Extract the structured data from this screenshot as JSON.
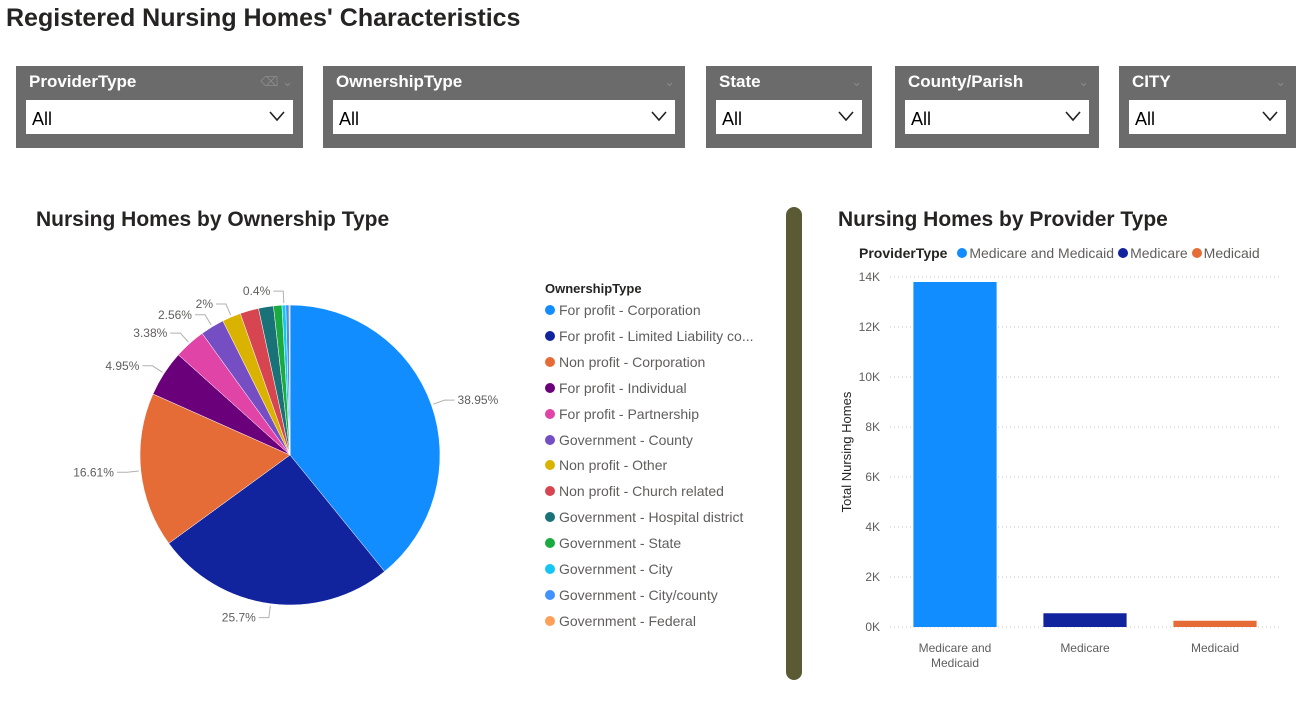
{
  "page": {
    "title": "Registered Nursing Homes' Characteristics"
  },
  "slicers": [
    {
      "label": "ProviderType",
      "value": "All"
    },
    {
      "label": "OwnershipType",
      "value": "All"
    },
    {
      "label": "State",
      "value": "All"
    },
    {
      "label": "County/Parish",
      "value": "All"
    },
    {
      "label": "CITY",
      "value": "All"
    }
  ],
  "chart_data": [
    {
      "type": "pie",
      "title": "Nursing Homes by Ownership Type",
      "legend_title": "OwnershipType",
      "legend_position": "right",
      "slices": [
        {
          "label": "For profit - Corporation",
          "display_label": "For profit - Corporation",
          "value": 38.95,
          "data_label": "38.95%",
          "color": "#118dff"
        },
        {
          "label": "For profit - Limited Liability company",
          "display_label": "For profit - Limited Liability co...",
          "value": 25.7,
          "data_label": "25.7%",
          "color": "#12239e"
        },
        {
          "label": "Non profit - Corporation",
          "display_label": "Non profit - Corporation",
          "value": 16.61,
          "data_label": "16.61%",
          "color": "#e66c37"
        },
        {
          "label": "For profit - Individual",
          "display_label": "For profit - Individual",
          "value": 4.95,
          "data_label": "4.95%",
          "color": "#6b007b"
        },
        {
          "label": "For profit - Partnership",
          "display_label": "For profit - Partnership",
          "value": 3.38,
          "data_label": "3.38%",
          "color": "#e044a7"
        },
        {
          "label": "Government - County",
          "display_label": "Government - County",
          "value": 2.56,
          "data_label": "2.56%",
          "color": "#744ec2"
        },
        {
          "label": "Non profit - Other",
          "display_label": "Non profit - Other",
          "value": 2.0,
          "data_label": "2%",
          "color": "#d9b300"
        },
        {
          "label": "Non profit - Church related",
          "display_label": "Non profit - Church related",
          "value": 2.0,
          "data_label": "",
          "color": "#d64550"
        },
        {
          "label": "Government - Hospital district",
          "display_label": "Government - Hospital district",
          "value": 1.6,
          "data_label": "",
          "color": "#197278"
        },
        {
          "label": "Government - State",
          "display_label": "Government - State",
          "value": 0.9,
          "data_label": "",
          "color": "#1aab40"
        },
        {
          "label": "Government - City",
          "display_label": "Government - City",
          "value": 0.4,
          "data_label": "0.4%",
          "color": "#15c6f4"
        },
        {
          "label": "Government - City/county",
          "display_label": "Government - City/county",
          "value": 0.35,
          "data_label": "",
          "color": "#4092ff"
        },
        {
          "label": "Government - Federal",
          "display_label": "Government - Federal",
          "value": 0.1,
          "data_label": "",
          "color": "#ffa058"
        }
      ]
    },
    {
      "type": "bar",
      "title": "Nursing Homes by Provider Type",
      "legend_title": "ProviderType",
      "legend_position": "top-left",
      "categories": [
        "Medicare and Medicaid",
        "Medicare",
        "Medicaid"
      ],
      "category_lines": [
        [
          "Medicare and",
          "Medicaid"
        ],
        [
          "Medicare"
        ],
        [
          "Medicaid"
        ]
      ],
      "values": [
        13800,
        550,
        250
      ],
      "colors": [
        "#118dff",
        "#12239e",
        "#e66c37"
      ],
      "ylabel": "Total Nursing Homes",
      "xlabel": "",
      "ylim": [
        0,
        14000
      ],
      "yticks": [
        0,
        2000,
        4000,
        6000,
        8000,
        10000,
        12000,
        14000
      ],
      "ytick_labels": [
        "0K",
        "2K",
        "4K",
        "6K",
        "8K",
        "10K",
        "12K",
        "14K"
      ],
      "grid": true
    }
  ]
}
